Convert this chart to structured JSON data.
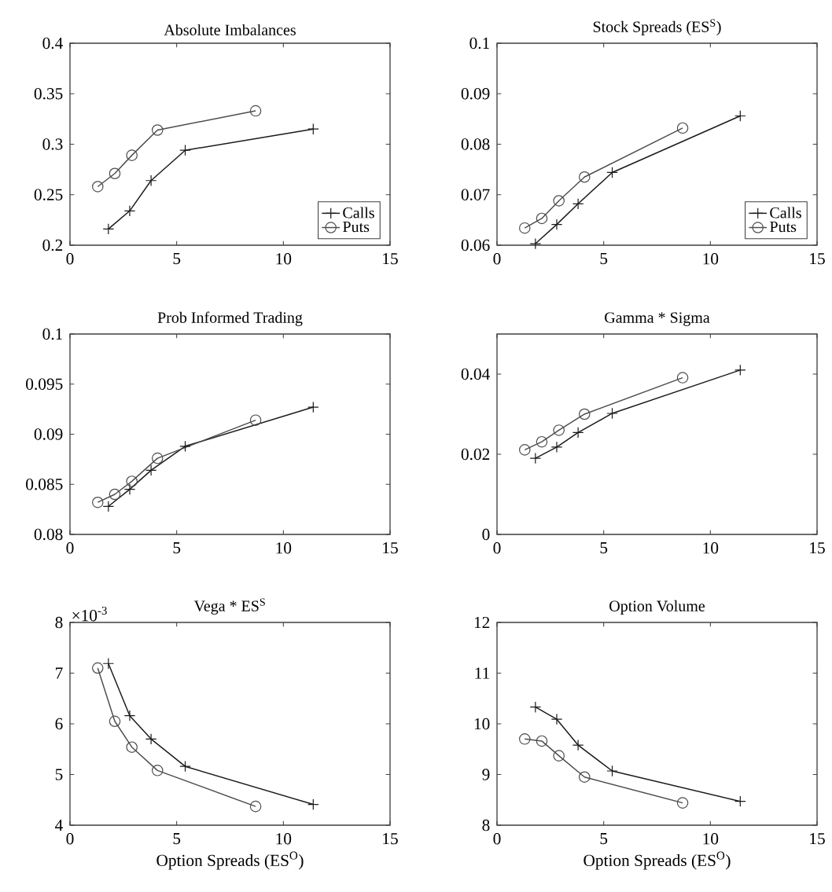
{
  "chart_data": [
    {
      "type": "line",
      "title": "Absolute Imbalances",
      "xlim": [
        0,
        15
      ],
      "xticks": [
        0,
        5,
        10,
        15
      ],
      "ylim": [
        0.2,
        0.4
      ],
      "yticks": [
        0.2,
        0.25,
        0.3,
        0.35,
        0.4
      ],
      "legend": "bottom right",
      "series": [
        {
          "name": "Calls",
          "color": "#1a1a1a",
          "marker": "cross",
          "x": [
            1.8,
            2.8,
            3.8,
            5.4,
            11.4
          ],
          "values": [
            0.216,
            0.234,
            0.264,
            0.294,
            0.315
          ]
        },
        {
          "name": "Puts",
          "color": "#4d4d4d",
          "marker": "circle",
          "x": [
            1.3,
            2.1,
            2.9,
            4.1,
            8.7
          ],
          "values": [
            0.258,
            0.271,
            0.289,
            0.314,
            0.333
          ]
        }
      ]
    },
    {
      "type": "line",
      "title": "Stock Spreads (ES$^{S}$)",
      "xlim": [
        0,
        15
      ],
      "xticks": [
        0,
        5,
        10,
        15
      ],
      "ylim": [
        0.06,
        0.1
      ],
      "yticks": [
        0.06,
        0.07,
        0.08,
        0.09,
        0.1
      ],
      "legend": "bottom right",
      "series": [
        {
          "name": "Calls",
          "color": "#1a1a1a",
          "marker": "cross",
          "x": [
            1.8,
            2.8,
            3.8,
            5.4,
            11.4
          ],
          "values": [
            0.0603,
            0.0641,
            0.0682,
            0.0744,
            0.0856
          ]
        },
        {
          "name": "Puts",
          "color": "#4d4d4d",
          "marker": "circle",
          "x": [
            1.3,
            2.1,
            2.9,
            4.1,
            8.7
          ],
          "values": [
            0.0634,
            0.0653,
            0.0688,
            0.0735,
            0.0832
          ]
        }
      ]
    },
    {
      "type": "line",
      "title": "Prob Informed Trading",
      "xlim": [
        0,
        15
      ],
      "xticks": [
        0,
        5,
        10,
        15
      ],
      "ylim": [
        0.08,
        0.1
      ],
      "yticks": [
        0.08,
        0.085,
        0.09,
        0.095,
        0.1
      ],
      "series": [
        {
          "color": "#1a1a1a",
          "marker": "cross",
          "x": [
            1.8,
            2.8,
            3.8,
            5.4,
            11.4
          ],
          "values": [
            0.0828,
            0.0845,
            0.0864,
            0.0888,
            0.0927
          ]
        },
        {
          "color": "#4d4d4d",
          "marker": "circle",
          "x": [
            1.3,
            2.1,
            2.9,
            4.1,
            8.7
          ],
          "values": [
            0.0832,
            0.084,
            0.0853,
            0.0876,
            0.0914
          ]
        }
      ]
    },
    {
      "type": "line",
      "title": "Gamma * Sigma",
      "xlim": [
        0,
        15
      ],
      "xticks": [
        0,
        5,
        10,
        15
      ],
      "ylim": [
        0,
        0.05
      ],
      "yticks": [
        0,
        0.02,
        0.04
      ],
      "series": [
        {
          "color": "#1a1a1a",
          "marker": "cross",
          "x": [
            1.8,
            2.8,
            3.8,
            5.4,
            11.4
          ],
          "values": [
            0.019,
            0.0218,
            0.0254,
            0.0302,
            0.041
          ]
        },
        {
          "color": "#4d4d4d",
          "marker": "circle",
          "x": [
            1.3,
            2.1,
            2.9,
            4.1,
            8.7
          ],
          "values": [
            0.0211,
            0.0231,
            0.026,
            0.03,
            0.0391
          ]
        }
      ]
    },
    {
      "type": "line",
      "title": "Vega * ES$^{S}$",
      "xlabel": "Option Spreads (ES$^{O}$)",
      "annotations": [
        "×10$^{-3}$"
      ],
      "xlim": [
        0,
        15
      ],
      "xticks": [
        0,
        5,
        10,
        15
      ],
      "ylim": [
        4,
        8
      ],
      "yticks": [
        4,
        5,
        6,
        7,
        8
      ],
      "series": [
        {
          "color": "#1a1a1a",
          "marker": "cross",
          "x": [
            1.8,
            2.8,
            3.8,
            5.4,
            11.4
          ],
          "values": [
            7.19,
            6.16,
            5.7,
            5.16,
            4.41
          ]
        },
        {
          "color": "#4d4d4d",
          "marker": "circle",
          "x": [
            1.3,
            2.1,
            2.9,
            4.1,
            8.7
          ],
          "values": [
            7.1,
            6.05,
            5.54,
            5.08,
            4.37
          ]
        }
      ]
    },
    {
      "type": "line",
      "title": "Option Volume",
      "xlabel": "Option Spreads (ES$^{O}$)",
      "xlim": [
        0,
        15
      ],
      "xticks": [
        0,
        5,
        10,
        15
      ],
      "ylim": [
        8,
        12
      ],
      "yticks": [
        8,
        9,
        10,
        11,
        12
      ],
      "series": [
        {
          "color": "#1a1a1a",
          "marker": "cross",
          "x": [
            1.8,
            2.8,
            3.8,
            5.4,
            11.4
          ],
          "values": [
            10.33,
            10.09,
            9.58,
            9.07,
            8.47
          ]
        },
        {
          "color": "#4d4d4d",
          "marker": "circle",
          "x": [
            1.3,
            2.1,
            2.9,
            4.1,
            8.7
          ],
          "values": [
            9.7,
            9.66,
            9.37,
            8.95,
            8.44
          ]
        }
      ]
    }
  ]
}
